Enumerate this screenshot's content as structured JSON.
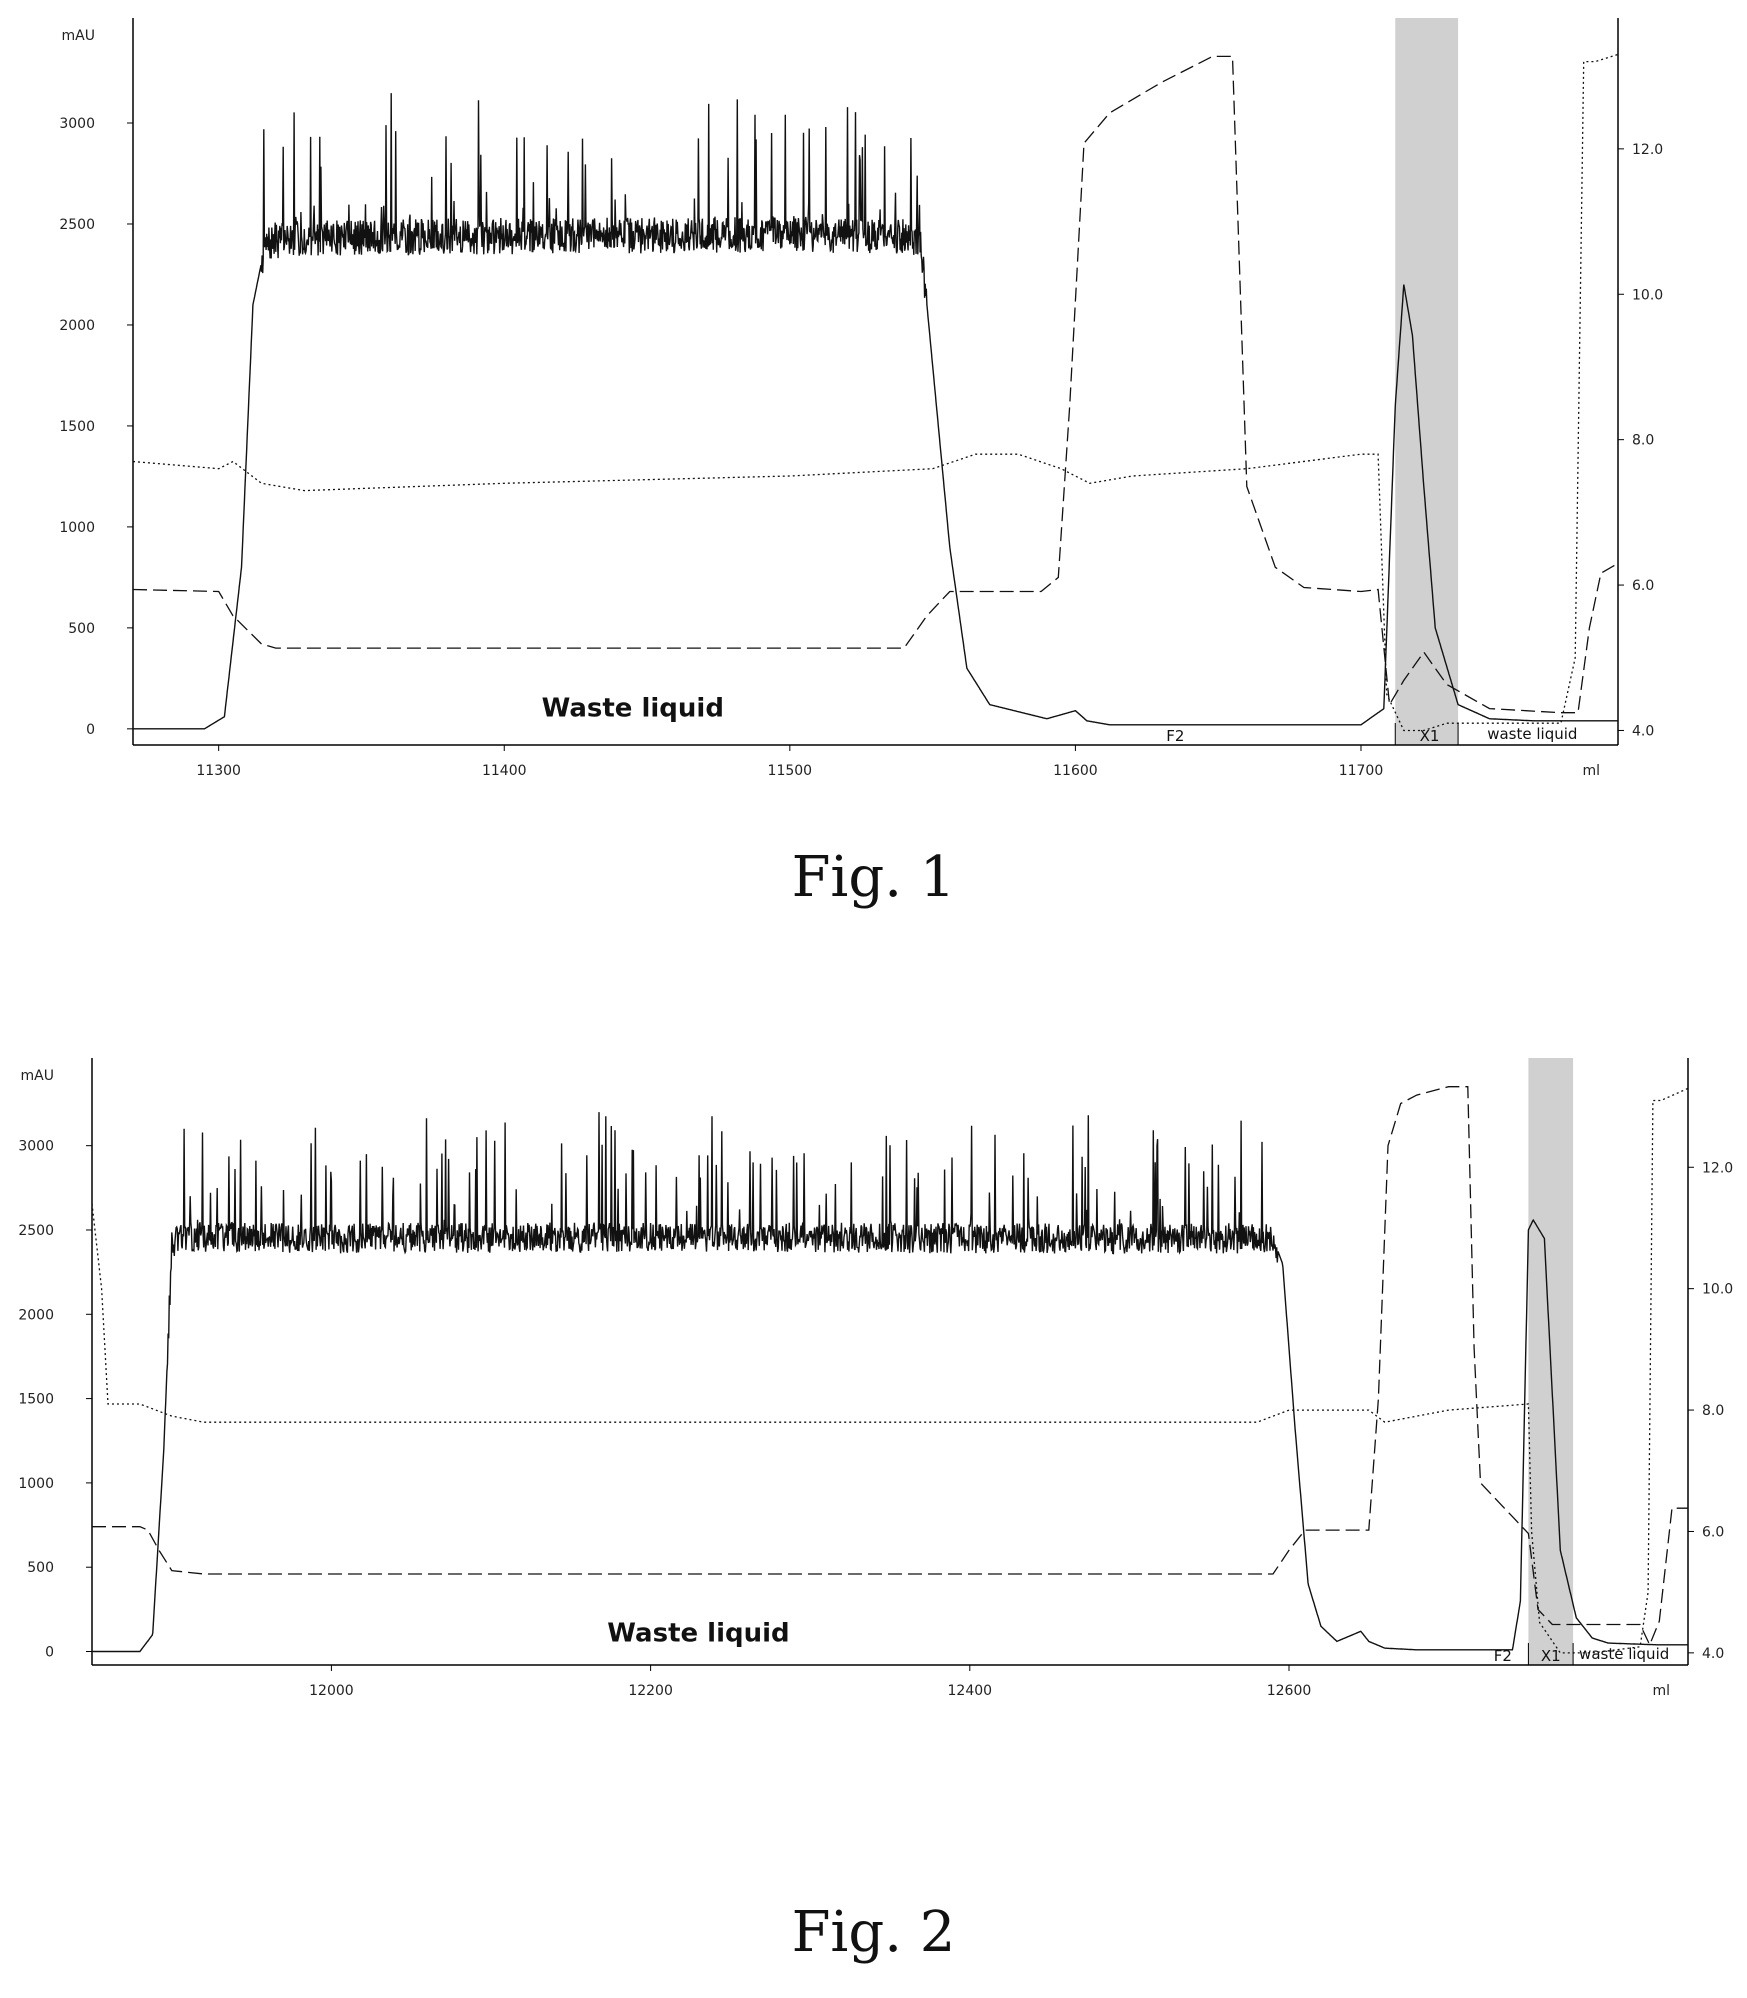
{
  "chart_data": [
    {
      "type": "line",
      "caption": "Fig. 1",
      "title": "",
      "xlabel": "ml",
      "ylabel": "mAU",
      "xlim": [
        11270,
        11790
      ],
      "ylim": [
        -80,
        3520
      ],
      "y2lim": [
        3.8,
        13.8
      ],
      "xticks": [
        11300,
        11400,
        11500,
        11600,
        11700
      ],
      "yticks": [
        0,
        500,
        1000,
        1500,
        2000,
        2500,
        3000
      ],
      "y2ticks": [
        4.0,
        6.0,
        8.0,
        10.0,
        12.0
      ],
      "y2tick_labels": [
        "4.0",
        "6.0",
        "8.0",
        "10.0",
        "12.0"
      ],
      "grid": false,
      "series": [
        {
          "style": "solid",
          "axis": "left",
          "noise": true,
          "x": [
            11270,
            11295,
            11302,
            11308,
            11312,
            11316,
            11320,
            11330,
            11400,
            11500,
            11540,
            11546,
            11550,
            11556,
            11562,
            11570,
            11590,
            11600,
            11604,
            11612,
            11700,
            11708,
            11712,
            11715,
            11718,
            11722,
            11726,
            11734,
            11745,
            11760,
            11790
          ],
          "y": [
            0,
            0,
            60,
            800,
            2100,
            2380,
            2420,
            2430,
            2440,
            2450,
            2440,
            2400,
            1800,
            900,
            300,
            120,
            50,
            90,
            40,
            20,
            20,
            100,
            1600,
            2200,
            1950,
            1200,
            500,
            120,
            50,
            40,
            40
          ]
        },
        {
          "style": "dotted",
          "axis": "right",
          "x": [
            11270,
            11300,
            11305,
            11315,
            11330,
            11400,
            11500,
            11550,
            11565,
            11580,
            11595,
            11605,
            11620,
            11660,
            11700,
            11706,
            11709,
            11715,
            11722,
            11730,
            11745,
            11770,
            11775,
            11778,
            11782,
            11790
          ],
          "y": [
            7.7,
            7.6,
            7.7,
            7.4,
            7.3,
            7.4,
            7.5,
            7.6,
            7.8,
            7.8,
            7.6,
            7.4,
            7.5,
            7.6,
            7.8,
            7.8,
            4.5,
            4.0,
            4.0,
            4.1,
            4.1,
            4.1,
            5.0,
            13.2,
            13.2,
            13.3
          ]
        },
        {
          "style": "dashed",
          "axis": "left",
          "x": [
            11270,
            11300,
            11305,
            11315,
            11320,
            11400,
            11500,
            11540,
            11548,
            11556,
            11580,
            11588,
            11594,
            11598,
            11603,
            11612,
            11630,
            11648,
            11655,
            11660,
            11670,
            11680,
            11700,
            11706,
            11710,
            11715,
            11722,
            11730,
            11745,
            11770,
            11776,
            11780,
            11784,
            11790
          ],
          "y": [
            690,
            680,
            560,
            420,
            400,
            400,
            400,
            400,
            560,
            680,
            680,
            680,
            750,
            1600,
            2900,
            3050,
            3200,
            3330,
            3330,
            1200,
            800,
            700,
            680,
            690,
            120,
            240,
            380,
            220,
            100,
            80,
            80,
            500,
            770,
            820
          ]
        }
      ],
      "annotations": {
        "waste_liquid_main": "Waste liquid",
        "waste_liquid_small": "waste liquid",
        "fraction_f2": "F2",
        "fraction_x1": "X1"
      },
      "shaded_region": [
        11712,
        11734
      ]
    },
    {
      "type": "line",
      "caption": "Fig. 2",
      "title": "",
      "xlabel": "ml",
      "ylabel": "mAU",
      "xlim": [
        11850,
        12850
      ],
      "ylim": [
        -80,
        3520
      ],
      "y2lim": [
        3.8,
        13.8
      ],
      "xticks": [
        12000,
        12200,
        12400,
        12600
      ],
      "yticks": [
        0,
        500,
        1000,
        1500,
        2000,
        2500,
        3000
      ],
      "y2ticks": [
        4.0,
        6.0,
        8.0,
        10.0,
        12.0
      ],
      "y2tick_labels": [
        "4.0",
        "6.0",
        "8.0",
        "10.0",
        "12.0"
      ],
      "grid": false,
      "series": [
        {
          "style": "solid",
          "axis": "left",
          "noise": true,
          "x": [
            11850,
            11880,
            11888,
            11895,
            11900,
            11905,
            11920,
            12000,
            12200,
            12400,
            12590,
            12596,
            12604,
            12612,
            12620,
            12630,
            12645,
            12650,
            12660,
            12680,
            12740,
            12745,
            12750,
            12753,
            12760,
            12770,
            12780,
            12790,
            12800,
            12830,
            12850
          ],
          "y": [
            0,
            0,
            100,
            1200,
            2400,
            2450,
            2460,
            2450,
            2460,
            2450,
            2450,
            2300,
            1300,
            400,
            150,
            60,
            120,
            60,
            20,
            10,
            10,
            300,
            2500,
            2560,
            2450,
            600,
            200,
            80,
            50,
            40,
            40
          ]
        },
        {
          "style": "dotted",
          "axis": "right",
          "x": [
            11850,
            11856,
            11860,
            11880,
            11890,
            11900,
            11920,
            12200,
            12580,
            12600,
            12650,
            12660,
            12700,
            12750,
            12752,
            12757,
            12770,
            12790,
            12820,
            12825,
            12828,
            12833,
            12850
          ],
          "y": [
            11.4,
            10.0,
            8.1,
            8.1,
            8.0,
            7.9,
            7.8,
            7.8,
            7.8,
            8.0,
            8.0,
            7.8,
            8.0,
            8.1,
            6.0,
            4.5,
            4.0,
            4.0,
            4.1,
            5.0,
            13.1,
            13.1,
            13.3
          ]
        },
        {
          "style": "dashed",
          "axis": "left",
          "x": [
            11850,
            11880,
            11885,
            11892,
            11900,
            11920,
            12000,
            12200,
            12400,
            12590,
            12600,
            12610,
            12650,
            12656,
            12662,
            12670,
            12680,
            12700,
            12712,
            12716,
            12720,
            12730,
            12740,
            12750,
            12756,
            12765,
            12790,
            12820,
            12826,
            12832,
            12840,
            12850
          ],
          "y": [
            740,
            740,
            720,
            600,
            480,
            460,
            460,
            460,
            460,
            460,
            600,
            720,
            720,
            1500,
            3000,
            3250,
            3300,
            3350,
            3350,
            1800,
            1000,
            900,
            800,
            700,
            250,
            160,
            160,
            160,
            40,
            180,
            850,
            850
          ]
        }
      ],
      "annotations": {
        "waste_liquid_main": "Waste liquid",
        "waste_liquid_small": "waste liquid",
        "fraction_f2": "F2",
        "fraction_x1": "X1"
      },
      "shaded_region": [
        12750,
        12778
      ]
    }
  ]
}
